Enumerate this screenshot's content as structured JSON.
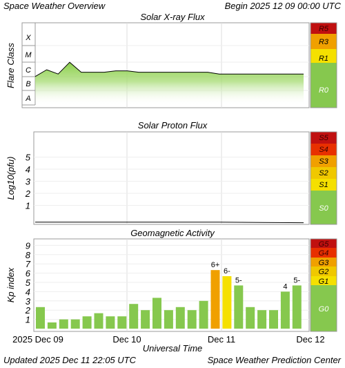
{
  "header": {
    "title": "Space Weather Overview",
    "begin": "Begin 2025 12 09 00:00 UTC"
  },
  "footer": {
    "updated": "Updated 2025 Dec 11 22:05 UTC",
    "credit": "Space Weather Prediction Center"
  },
  "colors": {
    "flux_fill": "#8ccf4c",
    "g0_green": "#86c84e",
    "level1_yellow": "#f5e000",
    "level2_gold": "#f0c800",
    "level3_orange": "#f0a000",
    "level4_red": "#e83000",
    "level5_darkred": "#c01010"
  },
  "chart_data": [
    {
      "type": "line",
      "title": "Solar X-ray Flux",
      "ylabel": "Flare Class",
      "y_class_labels": [
        "A",
        "B",
        "C",
        "M",
        "X"
      ],
      "y_scale": "log (A=1e-8 … X=1e-4 W/m²)",
      "x": [
        "Dec 09 00:00",
        "Dec 09 03:00",
        "Dec 09 06:00",
        "Dec 09 09:00",
        "Dec 09 12:00",
        "Dec 09 15:00",
        "Dec 09 18:00",
        "Dec 09 21:00",
        "Dec 10 00:00",
        "Dec 10 03:00",
        "Dec 10 06:00",
        "Dec 10 09:00",
        "Dec 10 12:00",
        "Dec 10 15:00",
        "Dec 10 18:00",
        "Dec 10 21:00",
        "Dec 11 00:00",
        "Dec 11 03:00",
        "Dec 11 06:00",
        "Dec 11 09:00",
        "Dec 11 12:00",
        "Dec 11 15:00",
        "Dec 11 18:00",
        "Dec 11 21:00"
      ],
      "series": [
        {
          "values": [
            "C1",
            "C3",
            "C1.5",
            "M1",
            "C2",
            "C2",
            "C2",
            "C2.5",
            "C2.5",
            "C2",
            "C2",
            "C2",
            "C2",
            "C2",
            "C2",
            "C2",
            "C1.5",
            "C1.5",
            "C1.5",
            "C1.5",
            "C1.5",
            "C1.5",
            "C1.5",
            "C1.5"
          ]
        }
      ],
      "scale_levels": [
        "R5",
        "R3",
        "R1",
        "R0"
      ]
    },
    {
      "type": "line",
      "title": "Solar Proton Flux",
      "ylabel": "Log10(pfu)",
      "yticks": [
        1,
        2,
        3,
        4,
        5
      ],
      "x": [
        "Dec 09 00:00",
        "Dec 10 00:00",
        "Dec 11 00:00",
        "Dec 11 22:00"
      ],
      "series": [
        {
          "values": [
            -0.5,
            -0.5,
            -0.5,
            -0.55
          ]
        }
      ],
      "scale_levels": [
        "S5",
        "S4",
        "S3",
        "S2",
        "S1",
        "S0"
      ]
    },
    {
      "type": "bar",
      "title": "Geomagnetic Activity",
      "ylabel": "Kp index",
      "xlabel": "Universal Time",
      "yticks": [
        1,
        2,
        3,
        4,
        5,
        6,
        7,
        8,
        9
      ],
      "ylim": [
        0,
        10
      ],
      "x_tick_labels": [
        "2025 Dec 09",
        "Dec 10",
        "Dec 11",
        "Dec 12"
      ],
      "values": [
        2.33,
        0.67,
        1.0,
        1.0,
        1.33,
        1.67,
        1.33,
        1.33,
        2.67,
        2.0,
        3.33,
        2.0,
        2.33,
        2.0,
        3.0,
        6.33,
        5.67,
        4.67,
        2.33,
        2.0,
        2.0,
        4.0,
        4.67
      ],
      "bar_labels": [
        "",
        "",
        "",
        "",
        "",
        "",
        "",
        "",
        "",
        "",
        "",
        "",
        "",
        "",
        "",
        "6+",
        "6-",
        "5-",
        "",
        "",
        "",
        "4",
        "5-"
      ],
      "scale_levels": [
        "G5",
        "G4",
        "G3",
        "G2",
        "G1",
        "G0"
      ]
    }
  ]
}
